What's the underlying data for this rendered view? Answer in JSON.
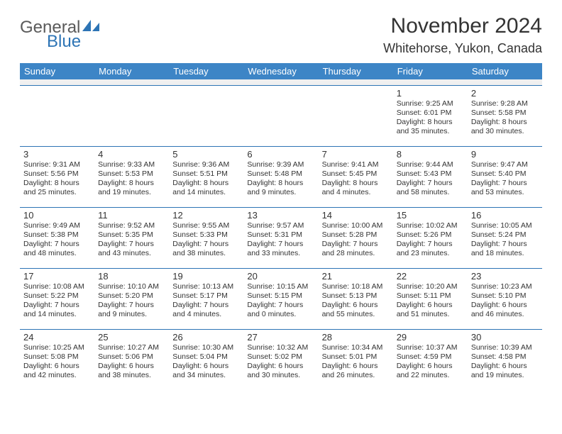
{
  "logo": {
    "word1": "General",
    "word2": "Blue",
    "icon_color": "#2d74b5"
  },
  "title": "November 2024",
  "location": "Whitehorse, Yukon, Canada",
  "header_bg": "#3d85c6",
  "days": [
    "Sunday",
    "Monday",
    "Tuesday",
    "Wednesday",
    "Thursday",
    "Friday",
    "Saturday"
  ],
  "weeks": [
    [
      null,
      null,
      null,
      null,
      null,
      {
        "n": "1",
        "sr": "9:25 AM",
        "ss": "6:01 PM",
        "dl": "8 hours and 35 minutes."
      },
      {
        "n": "2",
        "sr": "9:28 AM",
        "ss": "5:58 PM",
        "dl": "8 hours and 30 minutes."
      }
    ],
    [
      {
        "n": "3",
        "sr": "9:31 AM",
        "ss": "5:56 PM",
        "dl": "8 hours and 25 minutes."
      },
      {
        "n": "4",
        "sr": "9:33 AM",
        "ss": "5:53 PM",
        "dl": "8 hours and 19 minutes."
      },
      {
        "n": "5",
        "sr": "9:36 AM",
        "ss": "5:51 PM",
        "dl": "8 hours and 14 minutes."
      },
      {
        "n": "6",
        "sr": "9:39 AM",
        "ss": "5:48 PM",
        "dl": "8 hours and 9 minutes."
      },
      {
        "n": "7",
        "sr": "9:41 AM",
        "ss": "5:45 PM",
        "dl": "8 hours and 4 minutes."
      },
      {
        "n": "8",
        "sr": "9:44 AM",
        "ss": "5:43 PM",
        "dl": "7 hours and 58 minutes."
      },
      {
        "n": "9",
        "sr": "9:47 AM",
        "ss": "5:40 PM",
        "dl": "7 hours and 53 minutes."
      }
    ],
    [
      {
        "n": "10",
        "sr": "9:49 AM",
        "ss": "5:38 PM",
        "dl": "7 hours and 48 minutes."
      },
      {
        "n": "11",
        "sr": "9:52 AM",
        "ss": "5:35 PM",
        "dl": "7 hours and 43 minutes."
      },
      {
        "n": "12",
        "sr": "9:55 AM",
        "ss": "5:33 PM",
        "dl": "7 hours and 38 minutes."
      },
      {
        "n": "13",
        "sr": "9:57 AM",
        "ss": "5:31 PM",
        "dl": "7 hours and 33 minutes."
      },
      {
        "n": "14",
        "sr": "10:00 AM",
        "ss": "5:28 PM",
        "dl": "7 hours and 28 minutes."
      },
      {
        "n": "15",
        "sr": "10:02 AM",
        "ss": "5:26 PM",
        "dl": "7 hours and 23 minutes."
      },
      {
        "n": "16",
        "sr": "10:05 AM",
        "ss": "5:24 PM",
        "dl": "7 hours and 18 minutes."
      }
    ],
    [
      {
        "n": "17",
        "sr": "10:08 AM",
        "ss": "5:22 PM",
        "dl": "7 hours and 14 minutes."
      },
      {
        "n": "18",
        "sr": "10:10 AM",
        "ss": "5:20 PM",
        "dl": "7 hours and 9 minutes."
      },
      {
        "n": "19",
        "sr": "10:13 AM",
        "ss": "5:17 PM",
        "dl": "7 hours and 4 minutes."
      },
      {
        "n": "20",
        "sr": "10:15 AM",
        "ss": "5:15 PM",
        "dl": "7 hours and 0 minutes."
      },
      {
        "n": "21",
        "sr": "10:18 AM",
        "ss": "5:13 PM",
        "dl": "6 hours and 55 minutes."
      },
      {
        "n": "22",
        "sr": "10:20 AM",
        "ss": "5:11 PM",
        "dl": "6 hours and 51 minutes."
      },
      {
        "n": "23",
        "sr": "10:23 AM",
        "ss": "5:10 PM",
        "dl": "6 hours and 46 minutes."
      }
    ],
    [
      {
        "n": "24",
        "sr": "10:25 AM",
        "ss": "5:08 PM",
        "dl": "6 hours and 42 minutes."
      },
      {
        "n": "25",
        "sr": "10:27 AM",
        "ss": "5:06 PM",
        "dl": "6 hours and 38 minutes."
      },
      {
        "n": "26",
        "sr": "10:30 AM",
        "ss": "5:04 PM",
        "dl": "6 hours and 34 minutes."
      },
      {
        "n": "27",
        "sr": "10:32 AM",
        "ss": "5:02 PM",
        "dl": "6 hours and 30 minutes."
      },
      {
        "n": "28",
        "sr": "10:34 AM",
        "ss": "5:01 PM",
        "dl": "6 hours and 26 minutes."
      },
      {
        "n": "29",
        "sr": "10:37 AM",
        "ss": "4:59 PM",
        "dl": "6 hours and 22 minutes."
      },
      {
        "n": "30",
        "sr": "10:39 AM",
        "ss": "4:58 PM",
        "dl": "6 hours and 19 minutes."
      }
    ]
  ],
  "labels": {
    "sunrise": "Sunrise:",
    "sunset": "Sunset:",
    "daylight": "Daylight:"
  }
}
